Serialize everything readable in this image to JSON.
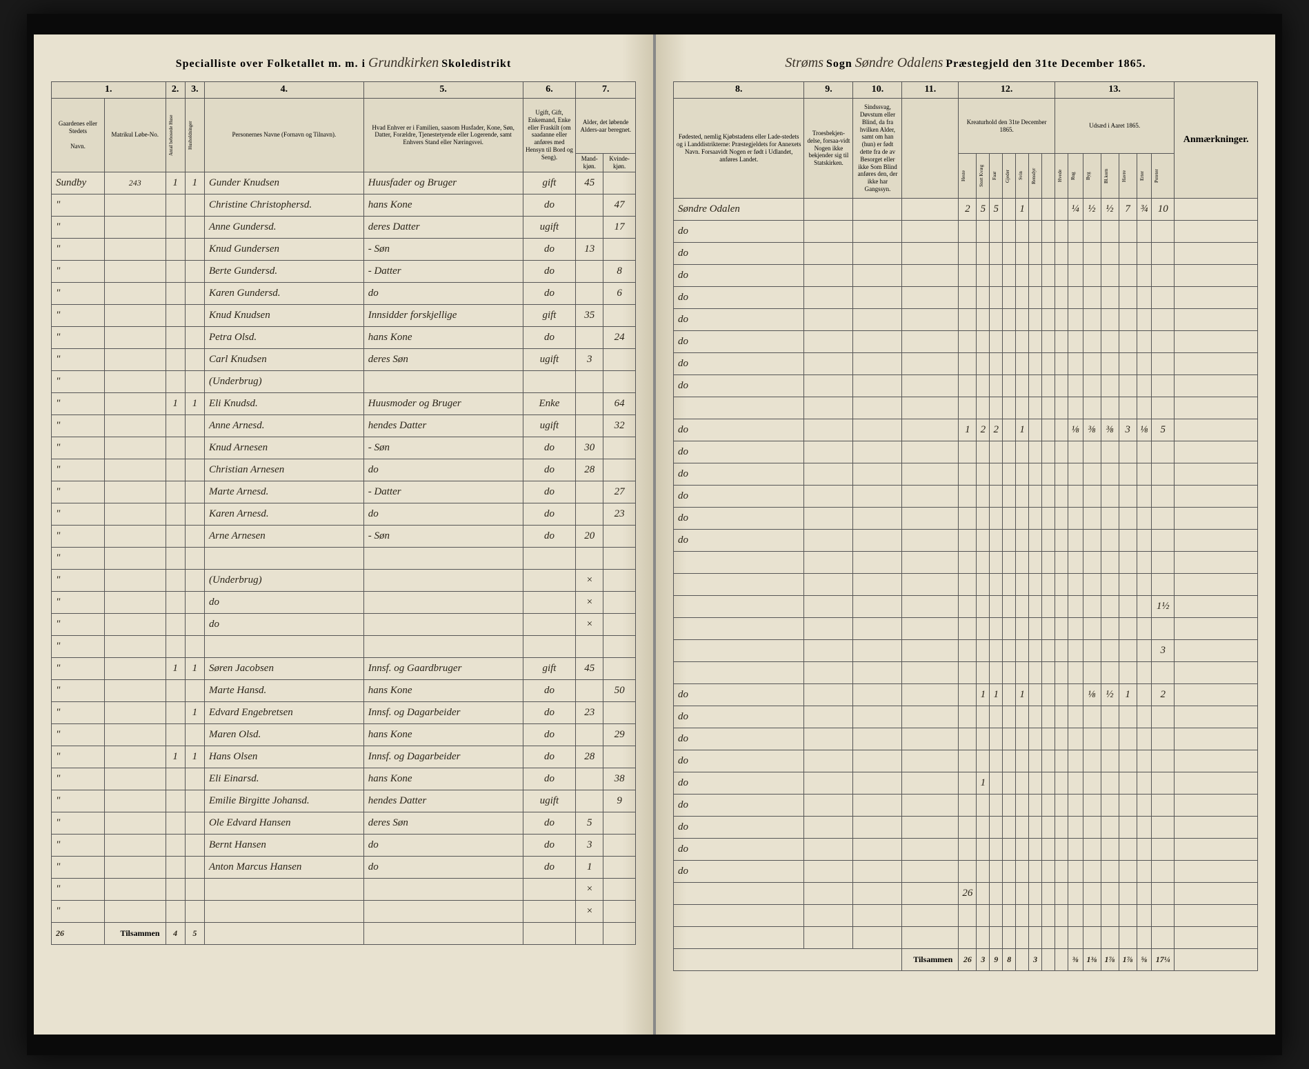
{
  "header_left": {
    "printed1": "Specialliste over Folketallet m. m. i",
    "handwritten": "Grundkirken",
    "printed2": "Skoledistrikt"
  },
  "header_right": {
    "handwritten1": "Strøms",
    "printed1": "Sogn",
    "handwritten2": "Søndre Odalens",
    "printed2": "Præstegjeld den 31te December 1865."
  },
  "col_labels_left": {
    "c1": "1.",
    "c2": "2.",
    "c3": "3.",
    "c4": "4.",
    "c5": "5.",
    "c6": "6.",
    "c7": "7."
  },
  "col_labels_right": {
    "c8": "8.",
    "c9": "9.",
    "c10": "10.",
    "c11": "11.",
    "c12": "12.",
    "c13": "13."
  },
  "sub_left": {
    "c1a": "Gaardenes eller Stedets",
    "c1b": "Navn.",
    "c1c": "Matrikul Løbe-No.",
    "c2": "Antal bebosede Huse",
    "c3": "Husholdninger",
    "c4": "Personernes Navne (Fornavn og Tilnavn).",
    "c5": "Hvad Enhver er i Familien, saasom Husfader, Kone, Søn, Datter, Forældre, Tjenestetyende eller Logerende, samt Enhvers Stand eller Næringsvei.",
    "c6": "Ugift, Gift, Enkemand, Enke eller Fraskilt (om saadanne eller anføres med Hensyn til Bord og Seng).",
    "c7": "Alder, det løbende Alders-aar beregnet.",
    "c7a": "Mand-kjøn.",
    "c7b": "Kvinde-kjøn."
  },
  "sub_right": {
    "c8": "Fødested, nemlig Kjøbstadens eller Lade-stedets og i Landdistrikterne: Præstegjeldets for Annexets Navn. Forsaavidt Nogen er født i Udlandet, anføres Landet.",
    "c9": "Troesbekjen-delse, forsaa-vidt Nogen ikke bekjender sig til Statskirken.",
    "c10": "Sindssvag, Døvstum eller Blind, da fra hvilken Alder, samt om han (hun) er født dette fra de av Besorget eller ikke Som Blind anføres den, der ikke har Gangssyn.",
    "c11": "",
    "c12": "Kreaturhold den 31te December 1865.",
    "c13": "Udsæd i Aaret 1865.",
    "c14": "Anmærkninger."
  },
  "livestock_headers": [
    "Heste",
    "Stort Kvæg",
    "Faar",
    "Gjeder",
    "Svin",
    "Rensdyr"
  ],
  "crop_headers": [
    "Hvede",
    "Rug",
    "Byg",
    "Bl.korn",
    "Havre",
    "Erter",
    "Poteter"
  ],
  "farm": "Sundby",
  "farm_no": "243",
  "rows": [
    {
      "h": "1",
      "hh": "1",
      "name": "Gunder Knudsen",
      "rel": "Huusfader og Bruger",
      "civ": "gift",
      "m": "45",
      "f": "",
      "birth": "Søndre Odalen",
      "live": [
        "2",
        "5",
        "5",
        "",
        "1",
        ""
      ],
      "crop": [
        "",
        "¼",
        "½",
        "½",
        "7",
        "¾",
        "10"
      ]
    },
    {
      "h": "",
      "hh": "",
      "name": "Christine Christophersd.",
      "rel": "hans Kone",
      "civ": "do",
      "m": "",
      "f": "47",
      "birth": "do",
      "live": [],
      "crop": []
    },
    {
      "h": "",
      "hh": "",
      "name": "Anne Gundersd.",
      "rel": "deres Datter",
      "civ": "ugift",
      "m": "",
      "f": "17",
      "birth": "do",
      "live": [],
      "crop": []
    },
    {
      "h": "",
      "hh": "",
      "name": "Knud Gundersen",
      "rel": "- Søn",
      "civ": "do",
      "m": "13",
      "f": "",
      "birth": "do",
      "live": [],
      "crop": []
    },
    {
      "h": "",
      "hh": "",
      "name": "Berte Gundersd.",
      "rel": "- Datter",
      "civ": "do",
      "m": "",
      "f": "8",
      "birth": "do",
      "live": [],
      "crop": []
    },
    {
      "h": "",
      "hh": "",
      "name": "Karen Gundersd.",
      "rel": "do",
      "civ": "do",
      "m": "",
      "f": "6",
      "birth": "do",
      "live": [],
      "crop": []
    },
    {
      "h": "",
      "hh": "",
      "name": "Knud Knudsen",
      "rel": "Innsidder forskjellige",
      "civ": "gift",
      "m": "35",
      "f": "",
      "birth": "do",
      "live": [],
      "crop": []
    },
    {
      "h": "",
      "hh": "",
      "name": "Petra Olsd.",
      "rel": "hans Kone",
      "civ": "do",
      "m": "",
      "f": "24",
      "birth": "do",
      "live": [],
      "crop": []
    },
    {
      "h": "",
      "hh": "",
      "name": "Carl Knudsen",
      "rel": "deres Søn",
      "civ": "ugift",
      "m": "3",
      "f": "",
      "birth": "do",
      "live": [],
      "crop": []
    },
    {
      "h": "",
      "hh": "",
      "name": "(Underbrug)",
      "rel": "",
      "civ": "",
      "m": "",
      "f": "",
      "birth": "",
      "live": [],
      "crop": []
    },
    {
      "h": "1",
      "hh": "1",
      "name": "Eli Knudsd.",
      "rel": "Huusmoder og Bruger",
      "civ": "Enke",
      "m": "",
      "f": "64",
      "birth": "do",
      "live": [
        "1",
        "2",
        "2",
        "",
        "1",
        ""
      ],
      "crop": [
        "",
        "⅛",
        "⅜",
        "⅜",
        "3",
        "⅛",
        "5"
      ]
    },
    {
      "h": "",
      "hh": "",
      "name": "Anne Arnesd.",
      "rel": "hendes Datter",
      "civ": "ugift",
      "m": "",
      "f": "32",
      "birth": "do",
      "live": [],
      "crop": []
    },
    {
      "h": "",
      "hh": "",
      "name": "Knud Arnesen",
      "rel": "- Søn",
      "civ": "do",
      "m": "30",
      "f": "",
      "birth": "do",
      "live": [],
      "crop": []
    },
    {
      "h": "",
      "hh": "",
      "name": "Christian Arnesen",
      "rel": "do",
      "civ": "do",
      "m": "28",
      "f": "",
      "birth": "do",
      "live": [],
      "crop": []
    },
    {
      "h": "",
      "hh": "",
      "name": "Marte Arnesd.",
      "rel": "- Datter",
      "civ": "do",
      "m": "",
      "f": "27",
      "birth": "do",
      "live": [],
      "crop": []
    },
    {
      "h": "",
      "hh": "",
      "name": "Karen Arnesd.",
      "rel": "do",
      "civ": "do",
      "m": "",
      "f": "23",
      "birth": "do",
      "live": [],
      "crop": []
    },
    {
      "h": "",
      "hh": "",
      "name": "Arne Arnesen",
      "rel": "- Søn",
      "civ": "do",
      "m": "20",
      "f": "",
      "birth": "",
      "live": [],
      "crop": []
    },
    {
      "h": "",
      "hh": "",
      "name": "",
      "rel": "",
      "civ": "",
      "m": "",
      "f": "",
      "birth": "",
      "live": [],
      "crop": []
    },
    {
      "h": "",
      "hh": "",
      "name": "(Underbrug)",
      "rel": "",
      "civ": "",
      "m": "×",
      "f": "",
      "birth": "",
      "live": [],
      "crop": [
        "",
        "",
        "",
        "",
        "",
        "",
        "1½"
      ]
    },
    {
      "h": "",
      "hh": "",
      "name": "do",
      "rel": "",
      "civ": "",
      "m": "×",
      "f": "",
      "birth": "",
      "live": [],
      "crop": []
    },
    {
      "h": "",
      "hh": "",
      "name": "do",
      "rel": "",
      "civ": "",
      "m": "×",
      "f": "",
      "birth": "",
      "live": [],
      "crop": [
        "",
        "",
        "",
        "",
        "",
        "",
        "3"
      ]
    },
    {
      "h": "",
      "hh": "",
      "name": "",
      "rel": "",
      "civ": "",
      "m": "",
      "f": "",
      "birth": "",
      "live": [],
      "crop": []
    },
    {
      "h": "1",
      "hh": "1",
      "name": "Søren Jacobsen",
      "rel": "Innsf. og Gaardbruger",
      "civ": "gift",
      "m": "45",
      "f": "",
      "birth": "do",
      "live": [
        "",
        "1",
        "1",
        "",
        "1",
        ""
      ],
      "crop": [
        "",
        "",
        "⅛",
        "½",
        "1",
        "",
        "2"
      ]
    },
    {
      "h": "",
      "hh": "",
      "name": "Marte Hansd.",
      "rel": "hans Kone",
      "civ": "do",
      "m": "",
      "f": "50",
      "birth": "do",
      "live": [],
      "crop": []
    },
    {
      "h": "",
      "hh": "1",
      "name": "Edvard Engebretsen",
      "rel": "Innsf. og Dagarbeider",
      "civ": "do",
      "m": "23",
      "f": "",
      "birth": "do",
      "live": [],
      "crop": []
    },
    {
      "h": "",
      "hh": "",
      "name": "Maren Olsd.",
      "rel": "hans Kone",
      "civ": "do",
      "m": "",
      "f": "29",
      "birth": "do",
      "live": [],
      "crop": []
    },
    {
      "h": "1",
      "hh": "1",
      "name": "Hans Olsen",
      "rel": "Innsf. og Dagarbeider",
      "civ": "do",
      "m": "28",
      "f": "",
      "birth": "do",
      "live": [
        "",
        "1",
        "",
        "",
        "",
        "",
        ""
      ],
      "crop": []
    },
    {
      "h": "",
      "hh": "",
      "name": "Eli Einarsd.",
      "rel": "hans Kone",
      "civ": "do",
      "m": "",
      "f": "38",
      "birth": "do",
      "live": [],
      "crop": []
    },
    {
      "h": "",
      "hh": "",
      "name": "Emilie Birgitte Johansd.",
      "rel": "hendes Datter",
      "civ": "ugift",
      "m": "",
      "f": "9",
      "birth": "do",
      "live": [],
      "crop": []
    },
    {
      "h": "",
      "hh": "",
      "name": "Ole Edvard Hansen",
      "rel": "deres Søn",
      "civ": "do",
      "m": "5",
      "f": "",
      "birth": "do",
      "live": [],
      "crop": []
    },
    {
      "h": "",
      "hh": "",
      "name": "Bernt Hansen",
      "rel": "do",
      "civ": "do",
      "m": "3",
      "f": "",
      "birth": "do",
      "live": [],
      "crop": []
    },
    {
      "h": "",
      "hh": "",
      "name": "Anton Marcus Hansen",
      "rel": "do",
      "civ": "do",
      "m": "1",
      "f": "",
      "birth": "",
      "live": [
        "26"
      ],
      "crop": []
    },
    {
      "h": "",
      "hh": "",
      "name": "",
      "rel": "",
      "civ": "",
      "m": "×",
      "f": "",
      "birth": "",
      "live": [],
      "crop": []
    },
    {
      "h": "",
      "hh": "",
      "name": "",
      "rel": "",
      "civ": "",
      "m": "×",
      "f": "",
      "birth": "",
      "live": [],
      "crop": []
    }
  ],
  "footer_left": {
    "label": "Tilsammen",
    "page_num": "26",
    "h_sum": "4",
    "hh_sum": "5"
  },
  "footer_right": {
    "label": "Tilsammen",
    "live": [
      "26",
      "3",
      "9",
      "8",
      "",
      "3",
      ""
    ],
    "crop": [
      "",
      "⅜",
      "1⅜",
      "1⅞",
      "1⅞",
      "⅝",
      "17¼"
    ]
  }
}
